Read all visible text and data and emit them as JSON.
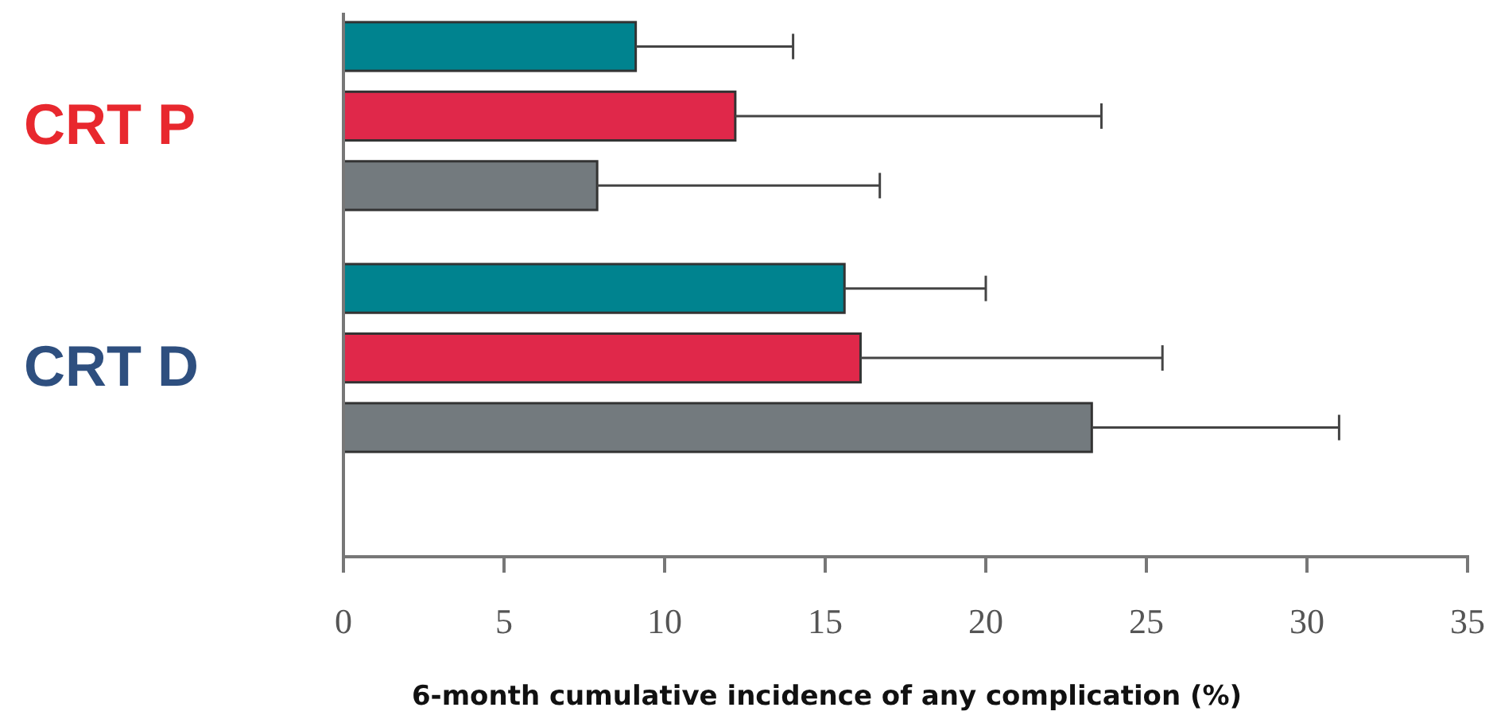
{
  "chart_data": {
    "type": "bar",
    "orientation": "horizontal",
    "xlabel": "6-month cumulative incidence of any complication (%)",
    "categories": [
      "CRT P",
      "CRT D"
    ],
    "series": [
      {
        "color": "#00838f",
        "values": [
          9.1,
          15.6
        ],
        "errors": [
          [
            9.1,
            14.0
          ],
          [
            15.6,
            20.0
          ]
        ]
      },
      {
        "color": "#e0284a",
        "values": [
          12.2,
          16.1
        ],
        "errors": [
          [
            12.2,
            23.6
          ],
          [
            16.1,
            25.5
          ]
        ]
      },
      {
        "color": "#737a7e",
        "values": [
          7.9,
          23.3
        ],
        "errors": [
          [
            7.9,
            16.7
          ],
          [
            23.3,
            31.0
          ]
        ]
      }
    ],
    "xlim": [
      0,
      35
    ],
    "xticks": [
      0,
      5,
      10,
      15,
      20,
      25,
      30,
      35
    ],
    "grid": false
  }
}
